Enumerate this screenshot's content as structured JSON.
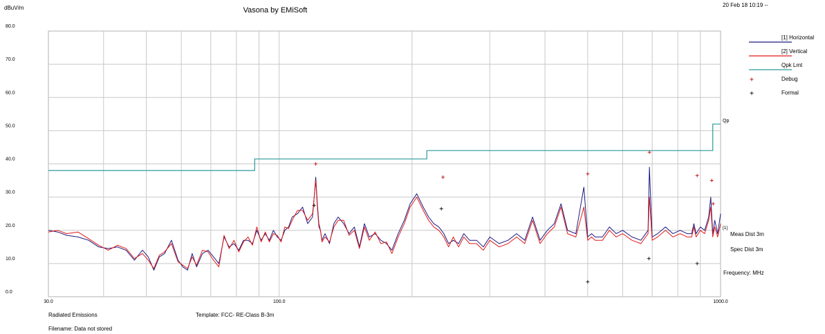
{
  "header": {
    "y_unit": "dBuV/m",
    "title": "Vasona by EMiSoft",
    "timestamp": "20 Feb 18 10:19 --"
  },
  "legend": {
    "items": [
      {
        "label": "[1] Horizontal",
        "color": "#1a1a80",
        "kind": "line"
      },
      {
        "label": "[2] Vertical",
        "color": "#e01a1a",
        "kind": "line"
      },
      {
        "label": "Qpk Lmt",
        "color": "#2a9a9a",
        "kind": "line"
      },
      {
        "label": "Debug",
        "color": "#c02020",
        "kind": "plus"
      },
      {
        "label": "Formal",
        "color": "#202020",
        "kind": "plus"
      }
    ]
  },
  "side_labels": {
    "limit_tag": "Qp",
    "marker_tag": "[1]",
    "meas_dist": "Meas Dist 3m",
    "spec_dist": "Spec Dist 3m",
    "frequency_unit": "Frequency: MHz"
  },
  "footer": {
    "test_name": "Radiated Emissions",
    "template": "Template: FCC- RE-Class B-3m",
    "filename": "Filename: Data not stored"
  },
  "chart_data": {
    "type": "line",
    "x_scale": "log",
    "xlim": [
      30,
      1000
    ],
    "ylim": [
      0,
      80
    ],
    "y_ticks": [
      "0.0",
      "10.0",
      "20.0",
      "30.0",
      "40.0",
      "50.0",
      "60.0",
      "70.0",
      "80.0"
    ],
    "x_tick_labels": [
      {
        "value": 30,
        "label": "30.0"
      },
      {
        "value": 100,
        "label": "100.0"
      },
      {
        "value": 1000,
        "label": "1000.0"
      }
    ],
    "grid": true,
    "legend_position": "right",
    "series": [
      {
        "name": "[1] Horizontal",
        "color": "#1a1a80",
        "x": [
          30,
          31.5,
          33,
          35,
          37,
          39,
          41,
          43,
          45,
          47,
          49,
          50.5,
          52,
          53.5,
          55,
          57,
          59,
          60.5,
          62,
          63.5,
          65,
          67,
          69,
          71,
          73,
          75,
          77,
          79,
          81,
          83,
          85,
          87,
          89,
          91,
          93,
          95,
          97,
          99,
          101,
          103,
          105,
          107,
          110,
          113,
          116,
          119,
          121,
          122,
          123,
          124,
          125,
          127,
          130,
          133,
          136,
          140,
          144,
          148,
          152,
          156,
          160,
          165,
          170,
          175,
          180,
          186,
          192,
          198,
          205,
          212,
          218,
          224,
          230,
          236,
          242,
          248,
          255,
          262,
          270,
          280,
          290,
          300,
          315,
          330,
          345,
          360,
          375,
          390,
          405,
          420,
          435,
          450,
          470,
          490,
          500,
          510,
          520,
          540,
          560,
          580,
          600,
          630,
          660,
          685,
          690,
          700,
          720,
          750,
          780,
          810,
          840,
          860,
          870,
          880,
          900,
          920,
          940,
          950,
          960,
          970,
          985,
          1000
        ],
        "y": [
          20,
          19.5,
          18.5,
          18,
          17,
          15,
          14.5,
          15,
          14,
          11,
          14,
          12,
          8,
          12,
          13,
          17,
          11,
          9,
          8,
          13,
          9,
          13,
          14,
          12,
          10,
          18,
          15,
          16,
          14,
          17,
          17,
          16,
          20,
          17,
          19,
          17,
          20,
          18,
          17,
          20,
          21,
          24,
          25,
          27,
          22,
          24,
          36,
          28,
          22,
          20,
          17,
          19,
          16,
          22,
          24,
          22,
          19,
          21,
          15,
          22,
          18,
          19,
          17,
          16,
          14,
          19,
          23,
          28,
          31,
          27,
          24,
          22,
          21,
          19,
          16,
          17,
          16,
          19,
          17,
          17,
          15,
          18,
          16,
          17,
          19,
          17,
          24,
          17,
          20,
          22,
          28,
          20,
          19,
          33,
          18,
          19,
          18,
          18,
          21,
          19,
          20,
          18,
          17,
          20,
          39,
          18,
          19,
          21,
          19,
          20,
          19,
          19,
          22,
          19,
          21,
          20,
          24,
          30,
          19,
          23,
          19,
          25
        ]
      },
      {
        "name": "[2] Vertical",
        "color": "#e01a1a",
        "x": [
          30,
          31.5,
          33,
          35,
          37,
          39,
          41,
          43,
          45,
          47,
          49,
          50.5,
          52,
          53.5,
          55,
          57,
          59,
          60.5,
          62,
          63.5,
          65,
          67,
          69,
          71,
          73,
          75,
          77,
          79,
          81,
          83,
          85,
          87,
          89,
          91,
          93,
          95,
          97,
          99,
          101,
          103,
          105,
          107,
          110,
          113,
          116,
          119,
          121,
          122,
          123,
          124,
          125,
          127,
          130,
          133,
          136,
          140,
          144,
          148,
          152,
          156,
          160,
          165,
          170,
          175,
          180,
          186,
          192,
          198,
          205,
          212,
          218,
          224,
          230,
          236,
          242,
          248,
          255,
          262,
          270,
          280,
          290,
          300,
          315,
          330,
          345,
          360,
          375,
          390,
          405,
          420,
          435,
          450,
          470,
          490,
          500,
          510,
          520,
          540,
          560,
          580,
          600,
          630,
          660,
          685,
          690,
          700,
          720,
          750,
          780,
          810,
          840,
          860,
          870,
          880,
          900,
          920,
          940,
          950,
          960,
          970,
          985,
          1000
        ],
        "y": [
          19.5,
          20,
          19,
          19.5,
          17.5,
          15.5,
          14,
          15.5,
          14.5,
          11.5,
          13,
          11,
          8.5,
          12.5,
          13.5,
          16,
          10.5,
          9.5,
          8.5,
          12,
          9.5,
          14,
          13.5,
          11,
          9,
          18.5,
          14.5,
          17,
          13.5,
          16.5,
          18,
          15.5,
          21,
          16.5,
          19.5,
          16.5,
          19,
          18.5,
          16.5,
          21,
          20.5,
          23,
          26,
          26,
          23,
          25,
          35,
          27,
          21,
          20,
          16.5,
          18,
          16.5,
          21,
          23,
          23,
          18.5,
          20,
          14.5,
          21,
          17,
          19.5,
          16,
          16.5,
          13,
          18,
          22,
          27,
          30,
          26,
          23,
          21,
          20,
          18,
          15,
          18,
          15,
          18,
          16,
          16,
          14,
          17,
          15,
          16,
          18,
          16,
          23,
          16,
          19,
          21,
          27,
          19,
          18,
          27,
          17,
          18,
          17,
          17,
          20,
          18,
          19,
          17,
          16,
          19,
          30,
          17,
          18,
          20,
          18,
          19,
          18,
          18,
          21,
          18,
          20,
          19,
          23,
          27,
          18,
          21,
          18,
          22
        ]
      },
      {
        "name": "Qpk Lmt",
        "color": "#2a9a9a",
        "x": [
          30,
          88,
          88,
          216,
          216,
          960,
          960,
          1000
        ],
        "y": [
          38,
          38,
          41.5,
          41.5,
          44,
          44,
          52,
          52
        ]
      }
    ],
    "debug_markers": [
      {
        "x": 121,
        "y": 40
      },
      {
        "x": 235,
        "y": 36
      },
      {
        "x": 500,
        "y": 37
      },
      {
        "x": 690,
        "y": 43.5
      },
      {
        "x": 885,
        "y": 36.5
      },
      {
        "x": 955,
        "y": 35
      },
      {
        "x": 962,
        "y": 28
      }
    ],
    "formal_markers": [
      {
        "x": 120,
        "y": 27.5
      },
      {
        "x": 233,
        "y": 26.5
      },
      {
        "x": 500,
        "y": 4.5
      },
      {
        "x": 688,
        "y": 11.5
      },
      {
        "x": 885,
        "y": 10
      }
    ]
  }
}
